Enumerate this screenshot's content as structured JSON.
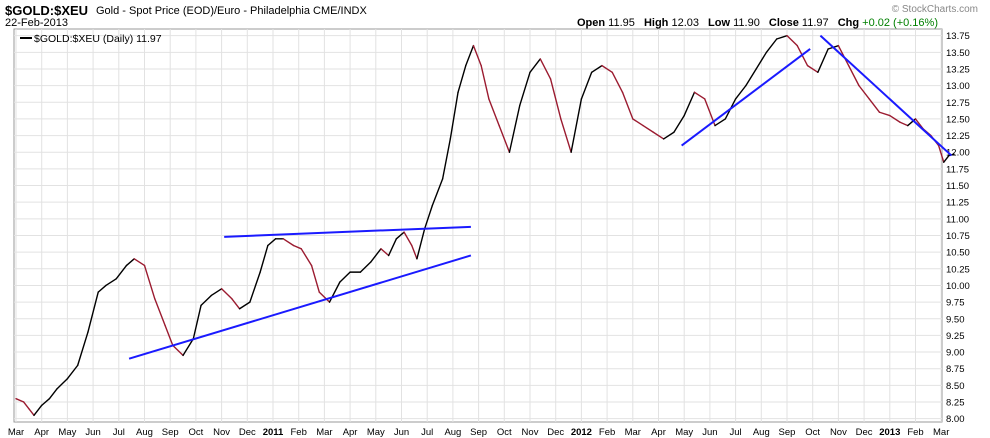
{
  "header": {
    "symbol": "$GOLD:$XEU",
    "description": "Gold - Spot Price (EOD)/Euro - Philadelphia CME/INDX",
    "date": "22-Feb-2013",
    "watermark": "© StockCharts.com",
    "open_label": "Open",
    "open": "11.95",
    "high_label": "High",
    "high": "12.03",
    "low_label": "Low",
    "low": "11.90",
    "close_label": "Close",
    "close": "11.97",
    "chg_label": "Chg",
    "chg": "+0.02 (+0.16%)"
  },
  "legend": "$GOLD:$XEU (Daily) 11.97",
  "chart_data": {
    "type": "line",
    "title": "$GOLD:$XEU",
    "xlabel": "",
    "ylabel": "",
    "ylim": [
      7.95,
      13.85
    ],
    "x_tick_labels": [
      "Mar",
      "Apr",
      "May",
      "Jun",
      "Jul",
      "Aug",
      "Sep",
      "Oct",
      "Nov",
      "Dec",
      "2011",
      "Feb",
      "Mar",
      "Apr",
      "May",
      "Jun",
      "Jul",
      "Aug",
      "Sep",
      "Oct",
      "Nov",
      "Dec",
      "2012",
      "Feb",
      "Mar",
      "Apr",
      "May",
      "Jun",
      "Jul",
      "Aug",
      "Sep",
      "Oct",
      "Nov",
      "Dec",
      "2013",
      "Feb",
      "Mar"
    ],
    "y_ticks": [
      8.0,
      8.25,
      8.5,
      8.75,
      9.0,
      9.25,
      9.5,
      9.75,
      10.0,
      10.25,
      10.5,
      10.75,
      11.0,
      11.25,
      11.5,
      11.75,
      12.0,
      12.25,
      12.5,
      12.75,
      13.0,
      13.25,
      13.5,
      13.75
    ],
    "grid": true,
    "price_color": "#9b1b30",
    "up_color": "#000000",
    "trendline_color": "#1a1aff",
    "series": [
      {
        "name": "$GOLD:$XEU (Daily)",
        "x": [
          0,
          0.3,
          0.5,
          0.7,
          1.0,
          1.3,
          1.6,
          2.0,
          2.4,
          2.8,
          3.2,
          3.5,
          3.9,
          4.3,
          4.6,
          5.0,
          5.4,
          5.8,
          6.1,
          6.5,
          6.9,
          7.2,
          7.6,
          8.0,
          8.4,
          8.7,
          9.1,
          9.5,
          9.8,
          10.1,
          10.4,
          10.8,
          11.1,
          11.5,
          11.8,
          12.2,
          12.6,
          13.0,
          13.4,
          13.8,
          14.2,
          14.5,
          14.8,
          15.1,
          15.4,
          15.6,
          15.9,
          16.2,
          16.6,
          16.9,
          17.2,
          17.5,
          17.8,
          18.1,
          18.4,
          18.8,
          19.2,
          19.6,
          20.0,
          20.4,
          20.8,
          21.2,
          21.6,
          22.0,
          22.4,
          22.8,
          23.2,
          23.6,
          24.0,
          24.4,
          24.8,
          25.2,
          25.6,
          26.0,
          26.4,
          26.8,
          27.2,
          27.6,
          28.0,
          28.4,
          28.8,
          29.2,
          29.6,
          30.0,
          30.4,
          30.8,
          31.2,
          31.6,
          32.0,
          32.4,
          32.8,
          33.2,
          33.6,
          34.0,
          34.4,
          34.7,
          35.0,
          35.3,
          35.6,
          35.9,
          36.1,
          36.3,
          36.5
        ],
        "values": [
          8.3,
          8.25,
          8.15,
          8.05,
          8.2,
          8.3,
          8.45,
          8.6,
          8.8,
          9.3,
          9.9,
          10.0,
          10.1,
          10.3,
          10.4,
          10.3,
          9.8,
          9.4,
          9.1,
          8.95,
          9.2,
          9.7,
          9.85,
          9.95,
          9.8,
          9.65,
          9.75,
          10.2,
          10.6,
          10.7,
          10.7,
          10.6,
          10.55,
          10.3,
          9.9,
          9.75,
          10.05,
          10.2,
          10.2,
          10.35,
          10.55,
          10.45,
          10.7,
          10.8,
          10.6,
          10.4,
          10.85,
          11.2,
          11.6,
          12.2,
          12.9,
          13.3,
          13.6,
          13.3,
          12.8,
          12.4,
          12.0,
          12.7,
          13.2,
          13.4,
          13.1,
          12.5,
          12.0,
          12.8,
          13.2,
          13.3,
          13.2,
          12.9,
          12.5,
          12.4,
          12.3,
          12.2,
          12.3,
          12.55,
          12.9,
          12.8,
          12.4,
          12.5,
          12.8,
          13.0,
          13.25,
          13.5,
          13.7,
          13.75,
          13.6,
          13.3,
          13.2,
          13.55,
          13.6,
          13.3,
          13.0,
          12.8,
          12.6,
          12.55,
          12.45,
          12.4,
          12.5,
          12.35,
          12.25,
          12.1,
          11.85,
          11.95,
          11.97
        ]
      }
    ],
    "trendlines": [
      {
        "x": [
          4.4,
          17.7
        ],
        "values": [
          8.9,
          10.45
        ]
      },
      {
        "x": [
          8.1,
          17.7
        ],
        "values": [
          10.73,
          10.88
        ]
      },
      {
        "x": [
          25.9,
          30.9
        ],
        "values": [
          12.1,
          13.55
        ]
      },
      {
        "x": [
          31.3,
          36.4
        ],
        "values": [
          13.75,
          11.95
        ]
      }
    ]
  }
}
